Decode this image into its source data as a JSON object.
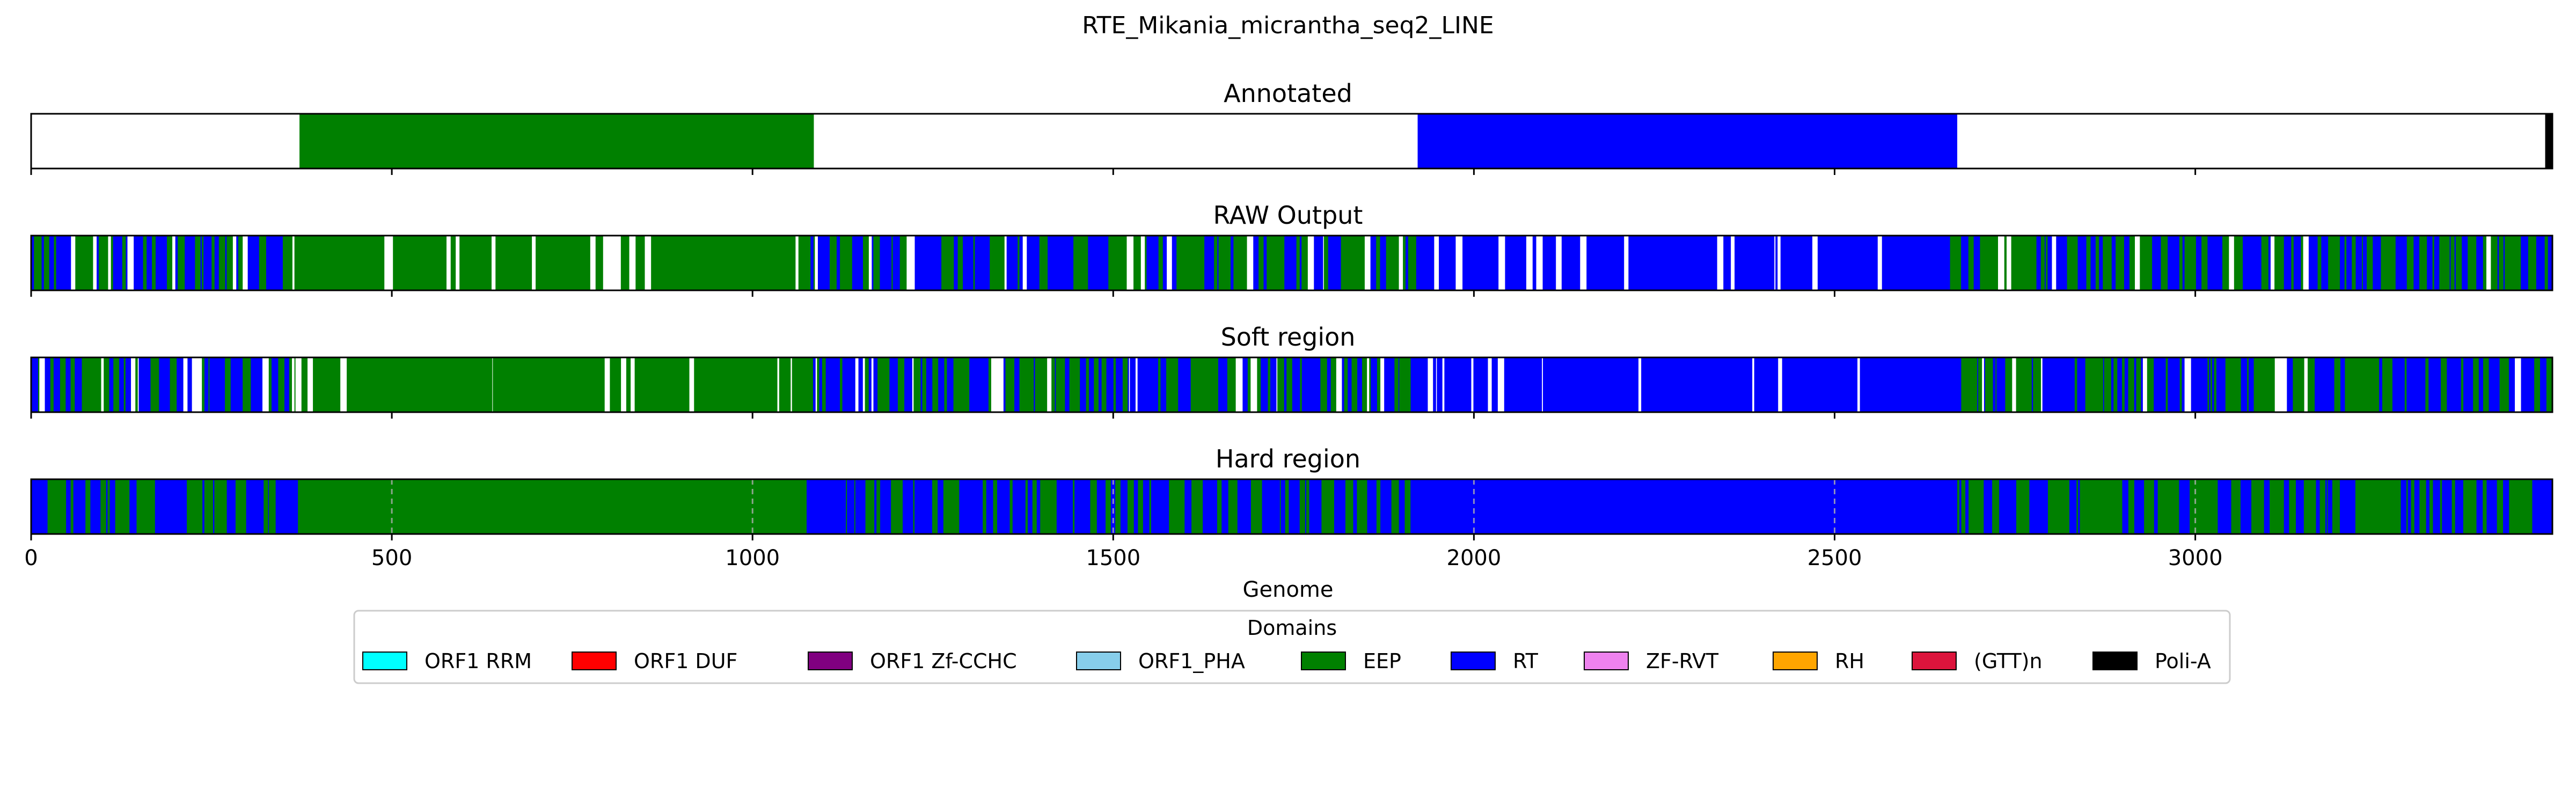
{
  "chart_data": {
    "type": "bar",
    "title": "RTE_Mikania_micrantha_seq2_LINE",
    "xlabel": "Genome",
    "xlim": [
      0,
      3495
    ],
    "xticks": [
      0,
      500,
      1000,
      1500,
      2000,
      2500,
      3000
    ],
    "xtick_labels": [
      "0",
      "500",
      "1000",
      "1500",
      "2000",
      "2500",
      "3000"
    ],
    "panels": [
      {
        "title": "Annotated",
        "segments": [
          {
            "start": 372,
            "end": 1085,
            "domain": "EEP"
          },
          {
            "start": 1922,
            "end": 2670,
            "domain": "RT"
          },
          {
            "start": 3485,
            "end": 3495,
            "domain": "Poli-A"
          }
        ]
      },
      {
        "title": "RAW Output",
        "mix": [
          {
            "start": 0,
            "end": 365,
            "blue": 0.5,
            "white": 0.12
          },
          {
            "start": 365,
            "end": 1075,
            "blue": 0.0,
            "white": 0.08
          },
          {
            "start": 1075,
            "end": 1370,
            "blue": 0.6,
            "white": 0.15
          },
          {
            "start": 1370,
            "end": 1590,
            "blue": 0.5,
            "white": 0.1
          },
          {
            "start": 1590,
            "end": 1920,
            "blue": 0.4,
            "white": 0.1
          },
          {
            "start": 1920,
            "end": 2660,
            "blue": 1.0,
            "white": 0.12
          },
          {
            "start": 2660,
            "end": 3495,
            "blue": 0.45,
            "white": 0.05
          }
        ]
      },
      {
        "title": "Soft region",
        "mix": [
          {
            "start": 0,
            "end": 365,
            "blue": 0.5,
            "white": 0.12
          },
          {
            "start": 365,
            "end": 1075,
            "blue": 0.0,
            "white": 0.08
          },
          {
            "start": 1075,
            "end": 1370,
            "blue": 0.6,
            "white": 0.15
          },
          {
            "start": 1370,
            "end": 1590,
            "blue": 0.5,
            "white": 0.1
          },
          {
            "start": 1590,
            "end": 1920,
            "blue": 0.4,
            "white": 0.1
          },
          {
            "start": 1920,
            "end": 2660,
            "blue": 1.0,
            "white": 0.12
          },
          {
            "start": 2660,
            "end": 3495,
            "blue": 0.45,
            "white": 0.05
          }
        ]
      },
      {
        "title": "Hard region",
        "grid": true,
        "mix": [
          {
            "start": 0,
            "end": 370,
            "blue": 0.5,
            "white": 0.0
          },
          {
            "start": 370,
            "end": 1075,
            "blue": 0.0,
            "white": 0.0
          },
          {
            "start": 1075,
            "end": 1920,
            "blue": 0.5,
            "white": 0.0
          },
          {
            "start": 1920,
            "end": 2670,
            "blue": 1.0,
            "white": 0.0
          },
          {
            "start": 2670,
            "end": 3495,
            "blue": 0.4,
            "white": 0.0
          }
        ]
      }
    ],
    "legend": {
      "title": "Domains",
      "placement": "bottom-center",
      "entries": [
        {
          "name": "ORF1 RRM",
          "color": "#00ffff"
        },
        {
          "name": "ORF1 DUF",
          "color": "#ff0000"
        },
        {
          "name": "ORF1 Zf-CCHC",
          "color": "#800080"
        },
        {
          "name": "ORF1_PHA",
          "color": "#87ceeb"
        },
        {
          "name": "EEP",
          "color": "#008000"
        },
        {
          "name": "RT",
          "color": "#0000ff"
        },
        {
          "name": "ZF-RVT",
          "color": "#ee82ee"
        },
        {
          "name": "RH",
          "color": "#ffa500"
        },
        {
          "name": "(GTT)n",
          "color": "#dc143c"
        },
        {
          "name": "Poli-A",
          "color": "#000000"
        }
      ]
    }
  }
}
